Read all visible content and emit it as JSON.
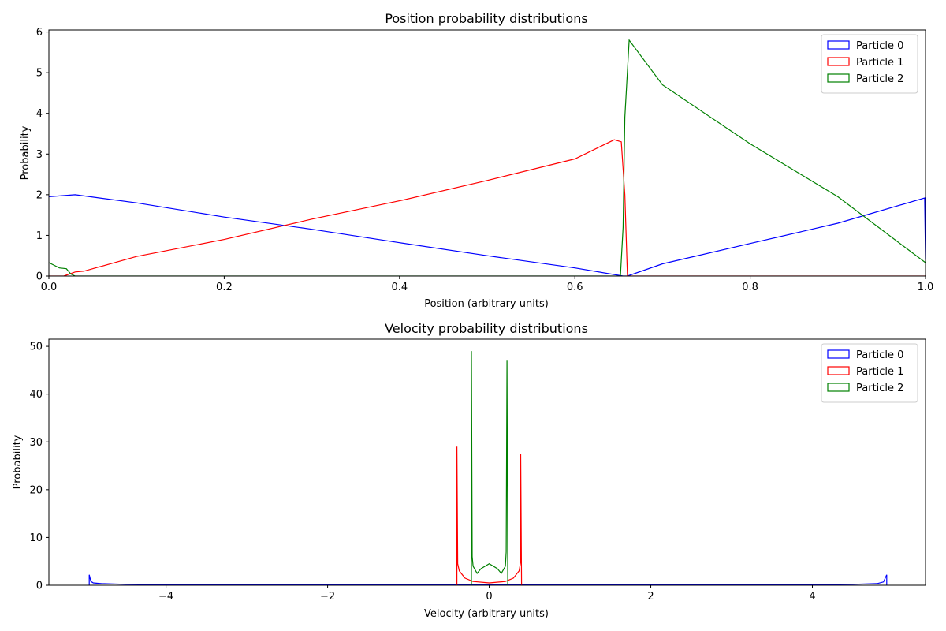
{
  "chart_data": [
    {
      "type": "line",
      "title": "Position probability distributions",
      "xlabel": "Position (arbitrary units)",
      "ylabel": "Probability",
      "xlim": [
        0.0,
        1.0
      ],
      "ylim": [
        0,
        6.05
      ],
      "xticks": [
        0.0,
        0.2,
        0.4,
        0.6,
        0.8,
        1.0
      ],
      "xtick_labels": [
        "0.0",
        "0.2",
        "0.4",
        "0.6",
        "0.8",
        "1.0"
      ],
      "yticks": [
        0,
        1,
        2,
        3,
        4,
        5,
        6
      ],
      "ytick_labels": [
        "0",
        "1",
        "2",
        "3",
        "4",
        "5",
        "6"
      ],
      "grid": false,
      "legend": "top-right",
      "series": [
        {
          "name": "Particle 0",
          "color": "#0000ff",
          "x": [
            0.0,
            0.03,
            0.1,
            0.2,
            0.3,
            0.4,
            0.5,
            0.6,
            0.655,
            0.66,
            0.7,
            0.8,
            0.9,
            0.999,
            1.0
          ],
          "y": [
            1.95,
            2.0,
            1.8,
            1.45,
            1.15,
            0.82,
            0.5,
            0.2,
            0.0,
            0.0,
            0.3,
            0.8,
            1.3,
            1.92,
            0.4
          ]
        },
        {
          "name": "Particle 1",
          "color": "#ff0000",
          "x": [
            0.0,
            0.017,
            0.03,
            0.04,
            0.1,
            0.2,
            0.3,
            0.4,
            0.5,
            0.6,
            0.645,
            0.653,
            0.657,
            0.66,
            1.0
          ],
          "y": [
            0.0,
            0.0,
            0.1,
            0.12,
            0.48,
            0.9,
            1.4,
            1.85,
            2.35,
            2.88,
            3.35,
            3.3,
            2.0,
            0.0,
            0.0
          ]
        },
        {
          "name": "Particle 2",
          "color": "#008000",
          "x": [
            0.0,
            0.012,
            0.02,
            0.025,
            0.03,
            0.65,
            0.652,
            0.655,
            0.657,
            0.662,
            0.7,
            0.8,
            0.9,
            1.0
          ],
          "y": [
            0.33,
            0.2,
            0.18,
            0.05,
            0.0,
            0.0,
            0.0,
            1.2,
            3.9,
            5.8,
            4.7,
            3.25,
            1.95,
            0.33
          ]
        }
      ]
    },
    {
      "type": "line",
      "title": "Velocity probability distributions",
      "xlabel": "Velocity (arbitrary units)",
      "ylabel": "Probability",
      "xlim": [
        -5.45,
        5.4
      ],
      "ylim": [
        0,
        51.5
      ],
      "xticks": [
        -4,
        -2,
        0,
        2,
        4
      ],
      "xtick_labels": [
        "−4",
        "−2",
        "0",
        "2",
        "4"
      ],
      "yticks": [
        0,
        10,
        20,
        30,
        40,
        50
      ],
      "ytick_labels": [
        "0",
        "10",
        "20",
        "30",
        "40",
        "50"
      ],
      "grid": false,
      "legend": "top-right",
      "series": [
        {
          "name": "Particle 0",
          "color": "#0000ff",
          "x": [
            -4.95,
            -4.95,
            -4.93,
            -4.9,
            -4.8,
            -4.5,
            -4.0,
            -2.0,
            0.0,
            2.0,
            4.0,
            4.5,
            4.8,
            4.88,
            4.92,
            4.92
          ],
          "y": [
            0.0,
            2.2,
            0.8,
            0.5,
            0.35,
            0.2,
            0.15,
            0.1,
            0.1,
            0.1,
            0.15,
            0.2,
            0.35,
            0.7,
            2.2,
            0.0
          ]
        },
        {
          "name": "Particle 1",
          "color": "#ff0000",
          "x": [
            -0.4,
            -0.4,
            -0.39,
            -0.37,
            -0.3,
            -0.2,
            0.0,
            0.2,
            0.3,
            0.37,
            0.39,
            0.39,
            0.4
          ],
          "y": [
            0.0,
            29.0,
            4.5,
            3.0,
            1.5,
            0.8,
            0.5,
            0.8,
            1.5,
            3.0,
            5.0,
            27.5,
            0.0
          ]
        },
        {
          "name": "Particle 2",
          "color": "#008000",
          "x": [
            -0.22,
            -0.22,
            -0.21,
            -0.2,
            -0.15,
            -0.1,
            0.0,
            0.1,
            0.15,
            0.2,
            0.21,
            0.22,
            0.23
          ],
          "y": [
            0.0,
            49.0,
            6.0,
            4.0,
            2.5,
            3.5,
            4.5,
            3.5,
            2.5,
            4.0,
            7.0,
            47.0,
            0.0
          ]
        }
      ]
    }
  ]
}
